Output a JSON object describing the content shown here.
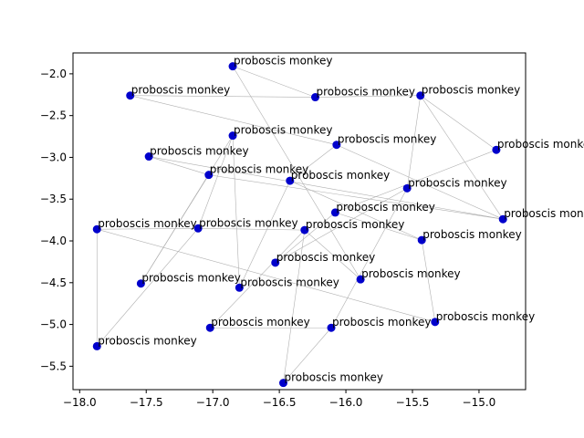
{
  "chart_data": {
    "type": "scatter",
    "title": "",
    "xlabel": "",
    "ylabel": "",
    "xlim": [
      -18.05,
      -14.65
    ],
    "ylim": [
      -5.78,
      -1.75
    ],
    "xticks": [
      -18.0,
      -17.5,
      -17.0,
      -16.5,
      -16.0,
      -15.5,
      -15.0
    ],
    "yticks": [
      -2.0,
      -2.5,
      -3.0,
      -3.5,
      -4.0,
      -4.5,
      -5.0,
      -5.5
    ],
    "xtick_labels": [
      "−18.0",
      "−17.5",
      "−17.0",
      "−16.5",
      "−16.0",
      "−15.5",
      "−15.0"
    ],
    "ytick_labels": [
      "−2.0",
      "−2.5",
      "−3.0",
      "−3.5",
      "−4.0",
      "−4.5",
      "−5.0",
      "−5.5"
    ],
    "grid": false,
    "point_color": "#0000cc",
    "line_color": "#b0b0b0",
    "points": [
      {
        "x": -16.85,
        "y": -1.91,
        "label": "proboscis monkey"
      },
      {
        "x": -17.62,
        "y": -2.26,
        "label": "proboscis monkey"
      },
      {
        "x": -16.23,
        "y": -2.28,
        "label": "proboscis monkey"
      },
      {
        "x": -15.44,
        "y": -2.26,
        "label": "proboscis monkey"
      },
      {
        "x": -16.85,
        "y": -2.74,
        "label": "proboscis monkey"
      },
      {
        "x": -16.07,
        "y": -2.85,
        "label": "proboscis monkey"
      },
      {
        "x": -14.87,
        "y": -2.91,
        "label": "proboscis monkey"
      },
      {
        "x": -17.48,
        "y": -2.99,
        "label": "proboscis monkey"
      },
      {
        "x": -17.03,
        "y": -3.21,
        "label": "proboscis monkey"
      },
      {
        "x": -16.42,
        "y": -3.28,
        "label": "proboscis monkey"
      },
      {
        "x": -15.54,
        "y": -3.37,
        "label": "proboscis monkey"
      },
      {
        "x": -16.08,
        "y": -3.66,
        "label": "proboscis monkey"
      },
      {
        "x": -14.82,
        "y": -3.74,
        "label": "proboscis monkey"
      },
      {
        "x": -17.87,
        "y": -3.86,
        "label": "proboscis monkey"
      },
      {
        "x": -17.11,
        "y": -3.85,
        "label": "proboscis monkey"
      },
      {
        "x": -16.31,
        "y": -3.87,
        "label": "proboscis monkey"
      },
      {
        "x": -15.43,
        "y": -3.99,
        "label": "proboscis monkey"
      },
      {
        "x": -16.53,
        "y": -4.26,
        "label": "proboscis monkey"
      },
      {
        "x": -15.89,
        "y": -4.46,
        "label": "proboscis monkey"
      },
      {
        "x": -17.54,
        "y": -4.51,
        "label": "proboscis monkey"
      },
      {
        "x": -16.8,
        "y": -4.56,
        "label": "proboscis monkey"
      },
      {
        "x": -15.33,
        "y": -4.97,
        "label": "proboscis monkey"
      },
      {
        "x": -17.02,
        "y": -5.04,
        "label": "proboscis monkey"
      },
      {
        "x": -16.11,
        "y": -5.04,
        "label": "proboscis monkey"
      },
      {
        "x": -17.87,
        "y": -5.26,
        "label": "proboscis monkey"
      },
      {
        "x": -16.47,
        "y": -5.7,
        "label": "proboscis monkey"
      }
    ],
    "edges": [
      [
        13,
        24
      ],
      [
        13,
        14
      ],
      [
        13,
        21
      ],
      [
        24,
        14
      ],
      [
        14,
        15
      ],
      [
        14,
        4
      ],
      [
        19,
        4
      ],
      [
        19,
        8
      ],
      [
        20,
        4
      ],
      [
        20,
        9
      ],
      [
        9,
        16
      ],
      [
        9,
        5
      ],
      [
        1,
        2
      ],
      [
        1,
        5
      ],
      [
        2,
        3
      ],
      [
        3,
        6
      ],
      [
        3,
        12
      ],
      [
        0,
        2
      ],
      [
        0,
        18
      ],
      [
        7,
        8
      ],
      [
        7,
        12
      ],
      [
        8,
        12
      ],
      [
        6,
        11
      ],
      [
        11,
        17
      ],
      [
        17,
        10
      ],
      [
        10,
        3
      ],
      [
        16,
        21
      ],
      [
        16,
        11
      ],
      [
        22,
        23
      ],
      [
        23,
        25
      ],
      [
        25,
        15
      ],
      [
        22,
        15
      ],
      [
        23,
        10
      ],
      [
        15,
        18
      ],
      [
        5,
        12
      ]
    ]
  }
}
